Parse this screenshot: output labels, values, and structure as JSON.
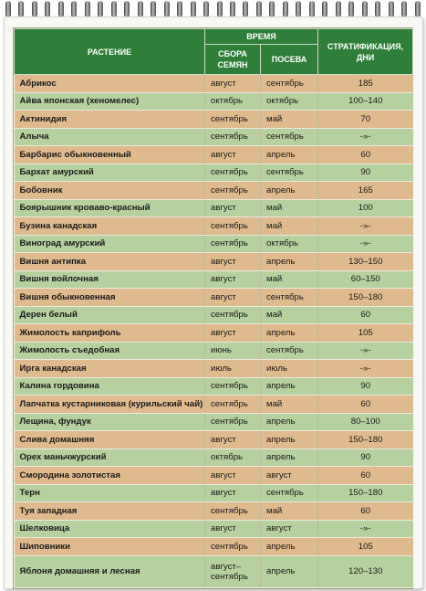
{
  "table": {
    "header": {
      "plant": "РАСТЕНИЕ",
      "time": "ВРЕМЯ",
      "seed_collection": "СБОРА СЕМЯН",
      "sowing": "ПОСЕВА",
      "stratification": "СТРАТИФИКАЦИЯ, ДНИ"
    },
    "rows": [
      {
        "plant": "Абрикос",
        "collect": "август",
        "sow": "сентябрь",
        "strat": "185",
        "color": "orange"
      },
      {
        "plant": "Айва японская (хеномелес)",
        "collect": "октябрь",
        "sow": "октябрь",
        "strat": "100–140",
        "color": "green"
      },
      {
        "plant": "Актинидия",
        "collect": "сентябрь",
        "sow": "май",
        "strat": "70",
        "color": "orange"
      },
      {
        "plant": "Алыча",
        "collect": "сентябрь",
        "sow": "сентябрь",
        "strat": "-»-",
        "color": "green"
      },
      {
        "plant": "Барбарис обыкновенный",
        "collect": "август",
        "sow": "апрель",
        "strat": "60",
        "color": "orange"
      },
      {
        "plant": "Бархат амурский",
        "collect": "сентябрь",
        "sow": "сентябрь",
        "strat": "90",
        "color": "green"
      },
      {
        "plant": "Бобовник",
        "collect": "сентябрь",
        "sow": "апрель",
        "strat": "165",
        "color": "orange"
      },
      {
        "plant": "Боярышник кроваво-красный",
        "collect": "август",
        "sow": "май",
        "strat": "100",
        "color": "green"
      },
      {
        "plant": "Бузина канадская",
        "collect": "сентябрь",
        "sow": "май",
        "strat": "-»-",
        "color": "orange"
      },
      {
        "plant": "Виноград амурский",
        "collect": "сентябрь",
        "sow": "октябрь",
        "strat": "-»-",
        "color": "green"
      },
      {
        "plant": "Вишня антипка",
        "collect": "август",
        "sow": "апрель",
        "strat": "130–150",
        "color": "orange"
      },
      {
        "plant": "Вишня войлочная",
        "collect": "август",
        "sow": "май",
        "strat": "60–150",
        "color": "green"
      },
      {
        "plant": "Вишня обыкновенная",
        "collect": "август",
        "sow": "сентябрь",
        "strat": "150–180",
        "color": "orange"
      },
      {
        "plant": "Дерен белый",
        "collect": "сентябрь",
        "sow": "май",
        "strat": "60",
        "color": "green"
      },
      {
        "plant": "Жимолость каприфоль",
        "collect": "август",
        "sow": "апрель",
        "strat": "105",
        "color": "orange"
      },
      {
        "plant": "Жимолость съедобная",
        "collect": "июнь",
        "sow": "сентябрь",
        "strat": "-»-",
        "color": "green"
      },
      {
        "plant": "Ирга канадская",
        "collect": "июль",
        "sow": "июль",
        "strat": "-»-",
        "color": "orange"
      },
      {
        "plant": "Калина гордовина",
        "collect": "сентябрь",
        "sow": "апрель",
        "strat": "90",
        "color": "green"
      },
      {
        "plant": "Лапчатка кустарниковая (курильский чай)",
        "collect": "сентябрь",
        "sow": "май",
        "strat": "60",
        "color": "orange"
      },
      {
        "plant": "Лещина, фундук",
        "collect": "сентябрь",
        "sow": "апрель",
        "strat": "80–100",
        "color": "green"
      },
      {
        "plant": "Слива домашняя",
        "collect": "август",
        "sow": "апрель",
        "strat": "150–180",
        "color": "orange"
      },
      {
        "plant": "Орех маньчжурский",
        "collect": "октябрь",
        "sow": "апрель",
        "strat": "90",
        "color": "green"
      },
      {
        "plant": "Смородина золотистая",
        "collect": "август",
        "sow": "август",
        "strat": "60",
        "color": "orange"
      },
      {
        "plant": "Терн",
        "collect": "август",
        "sow": "сентябрь",
        "strat": "150–180",
        "color": "green"
      },
      {
        "plant": "Туя западная",
        "collect": "сентябрь",
        "sow": "май",
        "strat": "60",
        "color": "orange"
      },
      {
        "plant": "Шелковица",
        "collect": "август",
        "sow": "август",
        "strat": "-»-",
        "color": "green"
      },
      {
        "plant": "Шиповники",
        "collect": "сентябрь",
        "sow": "апрель",
        "strat": "105",
        "color": "orange"
      },
      {
        "plant": "Яблоня домашняя и лесная",
        "collect": "август–сентябрь",
        "collect_lines": [
          "август–",
          "сентябрь"
        ],
        "sow": "апрель",
        "strat": "120–130",
        "color": "green"
      }
    ]
  },
  "colors": {
    "header_green": "#2f7f3a",
    "row_orange": "#dfba8e",
    "row_green": "#b7d09f"
  }
}
